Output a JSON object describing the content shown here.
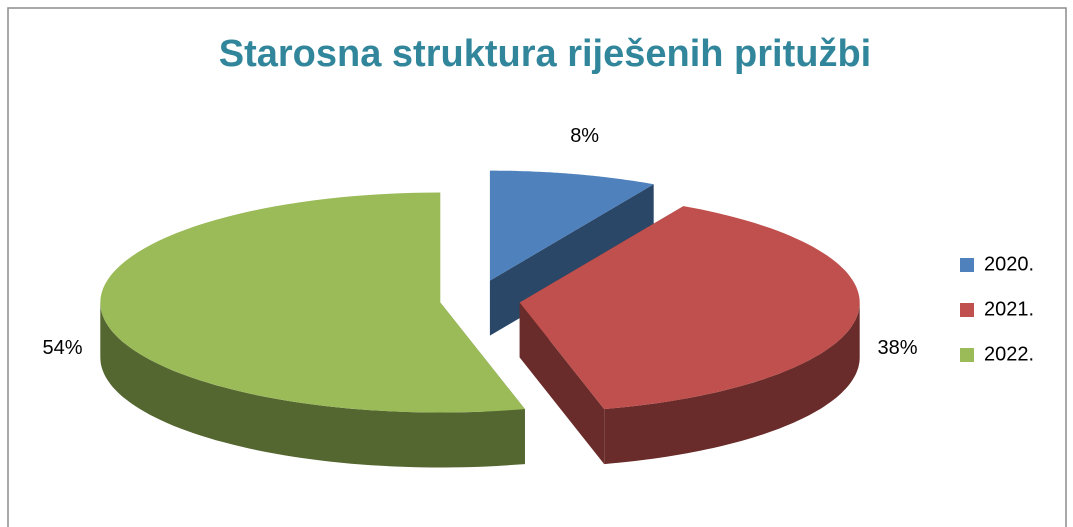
{
  "chart_data": {
    "type": "pie",
    "title": "Starosna struktura riješenih pritužbi",
    "categories": [
      "2020.",
      "2021.",
      "2022."
    ],
    "values": [
      8,
      38,
      54
    ],
    "value_labels": [
      "8%",
      "38%",
      "54%"
    ],
    "colors": [
      "#4f81bd",
      "#c0504d",
      "#9bbb59"
    ],
    "legend": "right"
  }
}
